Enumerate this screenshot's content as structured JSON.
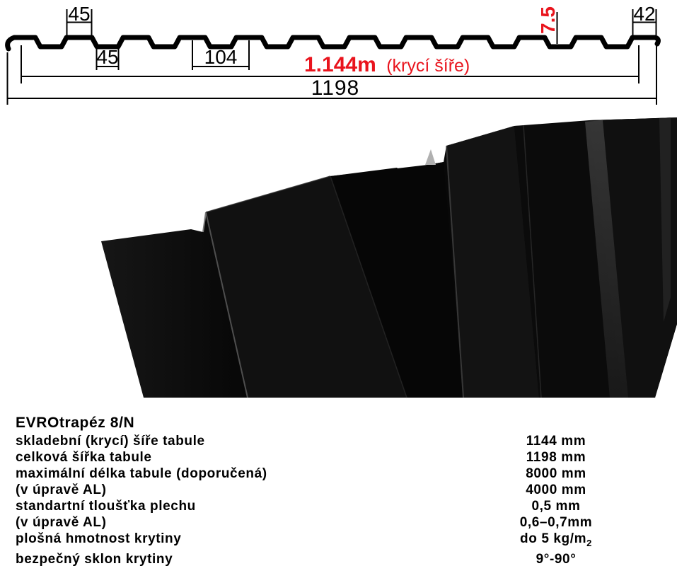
{
  "colors": {
    "accent_red": "#e9141d",
    "line_black": "#000000",
    "sheet_dark": "#0a0a0a"
  },
  "profile_diagram": {
    "rib_top_width": "45",
    "valley_width": "45",
    "rib_pitch": "104",
    "cover_width_value": "1.144m",
    "cover_width_note": "(krycí šíře)",
    "total_width": "1198",
    "profile_height": "7.5",
    "edge_rib_width": "42"
  },
  "specs": {
    "title": "EVROtrapéz 8/N",
    "rows": [
      {
        "label": "skladební (krycí) šíře tabule",
        "value": "1144 mm"
      },
      {
        "label": "celková šířka tabule",
        "value": "1198 mm"
      },
      {
        "label": "maximální délka tabule (doporučená)",
        "value": "8000 mm"
      },
      {
        "label": "(v úpravě AL)",
        "value": "4000 mm"
      },
      {
        "label": "standartní tloušťka plechu",
        "value": "0,5 mm"
      },
      {
        "label": "(v úpravě AL)",
        "value": "0,6–0,7mm"
      },
      {
        "label": "plošná hmotnost krytiny",
        "value": "do 5 kg/m",
        "value_sub": "2"
      },
      {
        "label": "bezpečný sklon krytiny",
        "value": "9°-90°"
      }
    ]
  }
}
